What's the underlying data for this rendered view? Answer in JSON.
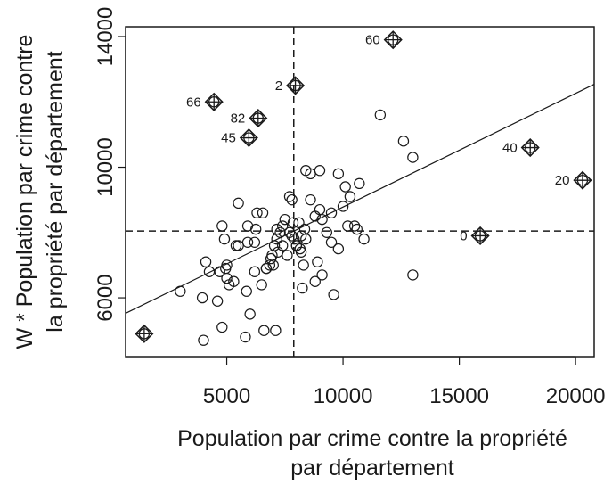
{
  "chart_data": {
    "type": "scatter",
    "title": "",
    "xlabel_lines": [
      "Population par crime contre la propriété",
      "par département"
    ],
    "ylabel_lines": [
      "W * Population par crime contre",
      "la propriété par département"
    ],
    "xlim": [
      650,
      20800
    ],
    "ylim": [
      4200,
      14300
    ],
    "xticks": [
      5000,
      10000,
      15000,
      20000
    ],
    "xtick_labels": [
      "5000",
      "10000",
      "15000",
      "20000"
    ],
    "yticks": [
      6000,
      10000,
      14000
    ],
    "ytick_labels": [
      "6000",
      "10000",
      "14000"
    ],
    "grid": false,
    "legend": "none",
    "mean_x": 7881,
    "mean_y": 8045,
    "regression": {
      "intercept": 5300,
      "slope": 0.348
    },
    "series": [
      {
        "marker": "open-circle",
        "x": [
          4000,
          4800,
          5800,
          6600,
          7100,
          3000,
          3950,
          4600,
          5100,
          6000,
          5500,
          4900,
          5000,
          4250,
          5300,
          5850,
          6200,
          6500,
          4100,
          4700,
          5000,
          5400,
          5900,
          6300,
          6900,
          7000,
          7200,
          7400,
          7600,
          7800,
          8000,
          7900,
          7700,
          7300,
          7050,
          6850,
          6700,
          6950,
          7150,
          7500,
          7700,
          8100,
          8200,
          8400,
          8350,
          8600,
          8800,
          9000,
          9100,
          9300,
          9500,
          9800,
          10000,
          10300,
          10500,
          10900,
          10100,
          10700,
          10200,
          9800,
          9500,
          9000,
          8600,
          8900,
          8200,
          8000,
          7850,
          7400,
          7150,
          6550,
          6200,
          5500,
          4800,
          4950,
          5900,
          6250,
          6700,
          7800,
          8150,
          8300,
          9100,
          9600,
          10600,
          13000,
          11600,
          12600,
          13000,
          8800,
          8250,
          8400
        ],
        "y": [
          4700,
          5100,
          4800,
          5000,
          5000,
          6200,
          6000,
          5900,
          6400,
          5500,
          7600,
          7800,
          6600,
          6800,
          6500,
          6200,
          6800,
          6400,
          7100,
          6800,
          7000,
          7600,
          7700,
          8600,
          7200,
          7000,
          7400,
          7600,
          7300,
          7900,
          7600,
          7800,
          8000,
          8000,
          7600,
          7000,
          6900,
          7300,
          7800,
          8400,
          9100,
          8300,
          7900,
          7800,
          8100,
          9000,
          8500,
          8700,
          8400,
          8000,
          7700,
          7500,
          8800,
          9100,
          8200,
          7800,
          9400,
          9500,
          8200,
          9800,
          8600,
          9900,
          9800,
          7100,
          7400,
          7600,
          8300,
          8200,
          8100,
          8600,
          7700,
          8900,
          8200,
          6900,
          8200,
          8100,
          6900,
          9000,
          7500,
          7000,
          6700,
          6100,
          8100,
          6700,
          11600,
          10800,
          10300,
          6500,
          6300,
          9900
        ]
      },
      {
        "marker": "diamond-plus",
        "x": [
          12150,
          7950,
          4450,
          6350,
          5950,
          18050,
          20300,
          15900,
          1450
        ],
        "y": [
          13900,
          12500,
          12000,
          11500,
          10900,
          10600,
          9600,
          7900,
          4900
        ],
        "labels": [
          "60",
          "2",
          "66",
          "82",
          "45",
          "40",
          "20",
          "0",
          ""
        ]
      }
    ]
  }
}
